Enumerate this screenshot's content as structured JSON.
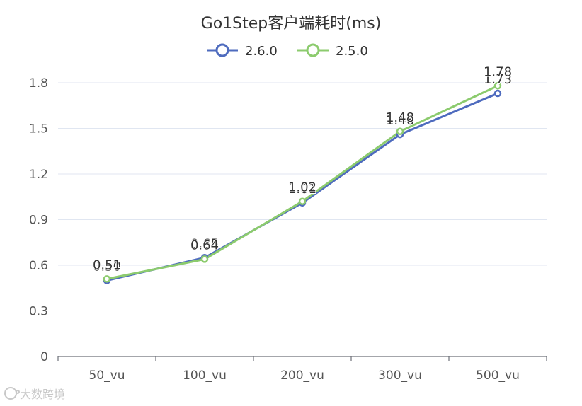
{
  "chart_data": {
    "type": "line",
    "title": "Go1Step客户端耗时(ms)",
    "categories": [
      "50_vu",
      "100_vu",
      "200_vu",
      "300_vu",
      "500_vu"
    ],
    "series": [
      {
        "name": "2.6.0",
        "values": [
          0.5,
          0.65,
          1.01,
          1.46,
          1.73
        ],
        "labels": [
          "0.50",
          "0.65",
          "1.01",
          "1.46",
          "1.73"
        ],
        "color": "#4E6BBE"
      },
      {
        "name": "2.5.0",
        "values": [
          0.51,
          0.64,
          1.02,
          1.48,
          1.78
        ],
        "labels": [
          "0.51",
          "0.64",
          "1.02",
          "1.48",
          "1.78"
        ],
        "color": "#8CCB6E"
      }
    ],
    "ylim": [
      0,
      1.8
    ],
    "yticks": [
      "0",
      "0.3",
      "0.6",
      "0.9",
      "1.2",
      "1.5",
      "1.8"
    ],
    "grid": true,
    "legend": "top-center"
  },
  "watermark": {
    "text": "大数跨境",
    "icon": "logo-icon"
  }
}
